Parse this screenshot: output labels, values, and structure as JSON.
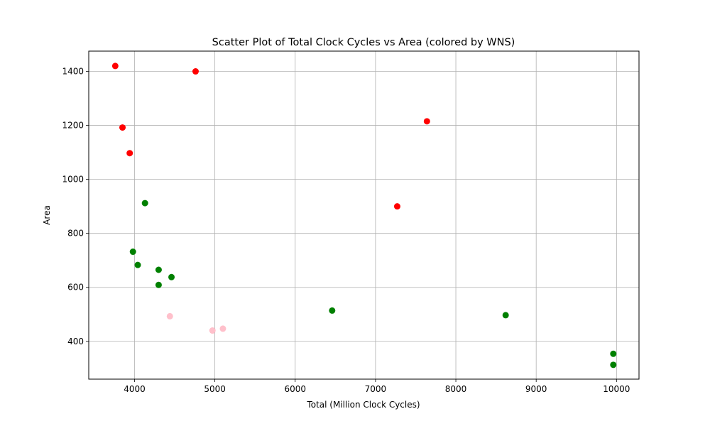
{
  "chart_data": {
    "type": "scatter",
    "title": "Scatter Plot of Total Clock Cycles vs Area (colored by WNS)",
    "xlabel": "Total (Million Clock Cycles)",
    "ylabel": "Area",
    "xlim": [
      3430,
      10280
    ],
    "ylim": [
      260,
      1475
    ],
    "xticks": [
      4000,
      5000,
      6000,
      7000,
      8000,
      9000,
      10000
    ],
    "yticks": [
      400,
      600,
      800,
      1000,
      1200,
      1400
    ],
    "xtick_labels": [
      "4000",
      "5000",
      "6000",
      "7000",
      "8000",
      "9000",
      "10000"
    ],
    "ytick_labels": [
      "400",
      "600",
      "800",
      "1000",
      "1200",
      "1400"
    ],
    "grid": true,
    "colors": {
      "red": "#ff0000",
      "green": "#008000",
      "pink": "#ffc0cb"
    },
    "points": [
      {
        "x": 3760,
        "y": 1420,
        "color": "red"
      },
      {
        "x": 4760,
        "y": 1400,
        "color": "red"
      },
      {
        "x": 3850,
        "y": 1192,
        "color": "red"
      },
      {
        "x": 3940,
        "y": 1097,
        "color": "red"
      },
      {
        "x": 7640,
        "y": 1215,
        "color": "red"
      },
      {
        "x": 7270,
        "y": 900,
        "color": "red"
      },
      {
        "x": 4130,
        "y": 912,
        "color": "green"
      },
      {
        "x": 3980,
        "y": 732,
        "color": "green"
      },
      {
        "x": 4040,
        "y": 683,
        "color": "green"
      },
      {
        "x": 4300,
        "y": 665,
        "color": "green"
      },
      {
        "x": 4460,
        "y": 638,
        "color": "green"
      },
      {
        "x": 4300,
        "y": 609,
        "color": "green"
      },
      {
        "x": 6460,
        "y": 514,
        "color": "green"
      },
      {
        "x": 8620,
        "y": 497,
        "color": "green"
      },
      {
        "x": 9960,
        "y": 354,
        "color": "green"
      },
      {
        "x": 9960,
        "y": 313,
        "color": "green"
      },
      {
        "x": 4440,
        "y": 493,
        "color": "pink"
      },
      {
        "x": 4970,
        "y": 440,
        "color": "pink"
      },
      {
        "x": 5100,
        "y": 447,
        "color": "pink"
      }
    ]
  }
}
